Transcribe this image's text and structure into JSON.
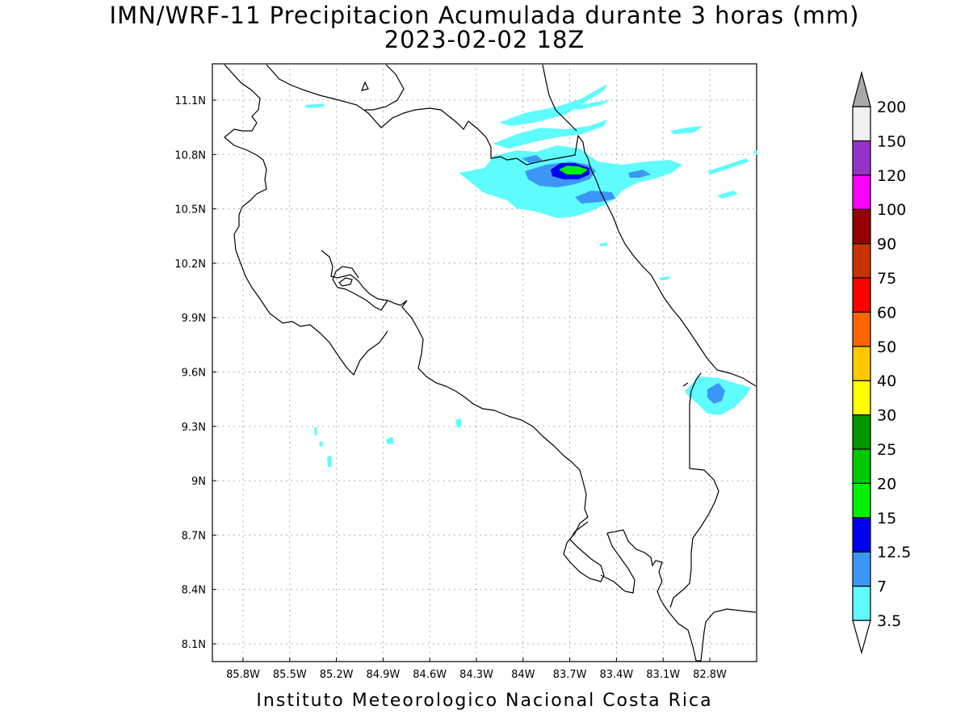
{
  "title": "IMN/WRF-11 Precipitacion Acumulada durante 3 horas (mm)",
  "subtitle": "2023-02-02 18Z",
  "footer": "Instituto Meteorologico Nacional Costa Rica",
  "lat_ticks": [
    "11.1N",
    "10.8N",
    "10.5N",
    "10.2N",
    "9.9N",
    "9.6N",
    "9.3N",
    "9N",
    "8.7N",
    "8.4N",
    "8.1N"
  ],
  "lon_ticks": [
    "85.8W",
    "85.5W",
    "85.2W",
    "84.9W",
    "84.6W",
    "84.3W",
    "84W",
    "83.7W",
    "83.4W",
    "83.1W",
    "82.8W"
  ],
  "colorbar": {
    "labels": [
      "3.5",
      "7",
      "12.5",
      "15",
      "20",
      "25",
      "30",
      "40",
      "50",
      "60",
      "75",
      "90",
      "100",
      "120",
      "150",
      "200"
    ],
    "colors": [
      "#ffffff",
      "#5efcfc",
      "#3c96f5",
      "#0000f0",
      "#00f000",
      "#00c800",
      "#009600",
      "#ffff00",
      "#ffc800",
      "#ff6400",
      "#ff0000",
      "#c83200",
      "#960000",
      "#ff00ff",
      "#9632c8",
      "#f0f0f0",
      "#aaaaaa"
    ]
  }
}
